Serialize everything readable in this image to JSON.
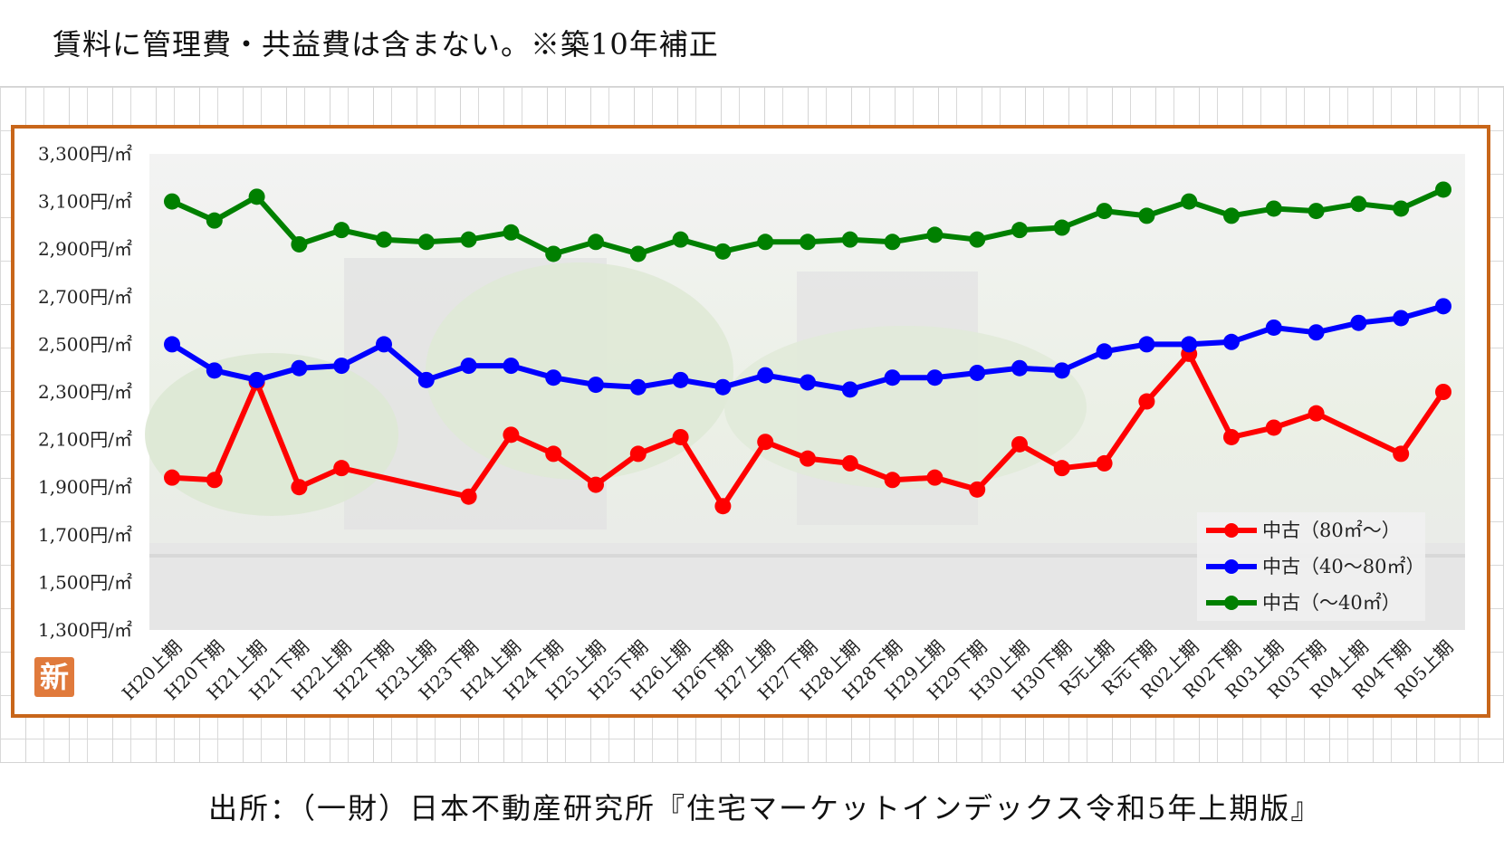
{
  "header": {
    "note": "賃料に管理費・共益費は含まない。※築10年補正"
  },
  "footer": {
    "source": "出所：（一財）日本不動産研究所『住宅マーケットインデックス令和5年上期版』"
  },
  "badge": {
    "label": "新"
  },
  "colors": {
    "frame": "#c8661a",
    "red": "#ff0000",
    "blue": "#0000ff",
    "green": "#008000"
  },
  "chart_data": {
    "type": "line",
    "title": "",
    "xlabel": "",
    "ylabel": "",
    "ylim": [
      1300,
      3300
    ],
    "yticks": [
      1300,
      1500,
      1700,
      1900,
      2100,
      2300,
      2500,
      2700,
      2900,
      3100,
      3300
    ],
    "ytick_labels": [
      "1,300円/㎡",
      "1,500円/㎡",
      "1,700円/㎡",
      "1,900円/㎡",
      "2,100円/㎡",
      "2,300円/㎡",
      "2,500円/㎡",
      "2,700円/㎡",
      "2,900円/㎡",
      "3,100円/㎡",
      "3,300円/㎡"
    ],
    "categories": [
      "H20上期",
      "H20下期",
      "H21上期",
      "H21下期",
      "H22上期",
      "H22下期",
      "H23上期",
      "H23下期",
      "H24上期",
      "H24下期",
      "H25上期",
      "H25下期",
      "H26上期",
      "H26下期",
      "H27上期",
      "H27下期",
      "H28上期",
      "H28下期",
      "H29上期",
      "H29下期",
      "H30上期",
      "H30下期",
      "R元上期",
      "R元下期",
      "R02上期",
      "R02下期",
      "R03上期",
      "R03下期",
      "R04上期",
      "R04下期",
      "R05上期"
    ],
    "legend_position": "bottom-right",
    "series": [
      {
        "name": "中古（80㎡～）",
        "color": "#ff0000",
        "values": [
          1940,
          1930,
          2340,
          1900,
          1980,
          null,
          null,
          1860,
          2120,
          2040,
          1910,
          2040,
          2110,
          1820,
          2090,
          2020,
          2000,
          1930,
          1940,
          1890,
          2080,
          1980,
          2000,
          2260,
          2460,
          2110,
          2150,
          2210,
          null,
          2040,
          2300
        ]
      },
      {
        "name": "中古（40～80㎡）",
        "color": "#0000ff",
        "values": [
          2500,
          2390,
          2350,
          2400,
          2410,
          2500,
          2350,
          2410,
          2410,
          2360,
          2330,
          2320,
          2350,
          2320,
          2370,
          2340,
          2310,
          2360,
          2360,
          2380,
          2400,
          2390,
          2470,
          2500,
          2500,
          2510,
          2570,
          2550,
          2590,
          2610,
          2660
        ]
      },
      {
        "name": "中古（～40㎡）",
        "color": "#008000",
        "values": [
          3100,
          3020,
          3120,
          2920,
          2980,
          2940,
          2930,
          2940,
          2970,
          2880,
          2930,
          2880,
          2940,
          2890,
          2930,
          2930,
          2940,
          2930,
          2960,
          2940,
          2980,
          2990,
          3060,
          3040,
          3100,
          3040,
          3070,
          3060,
          3090,
          3070,
          3150
        ]
      }
    ]
  }
}
